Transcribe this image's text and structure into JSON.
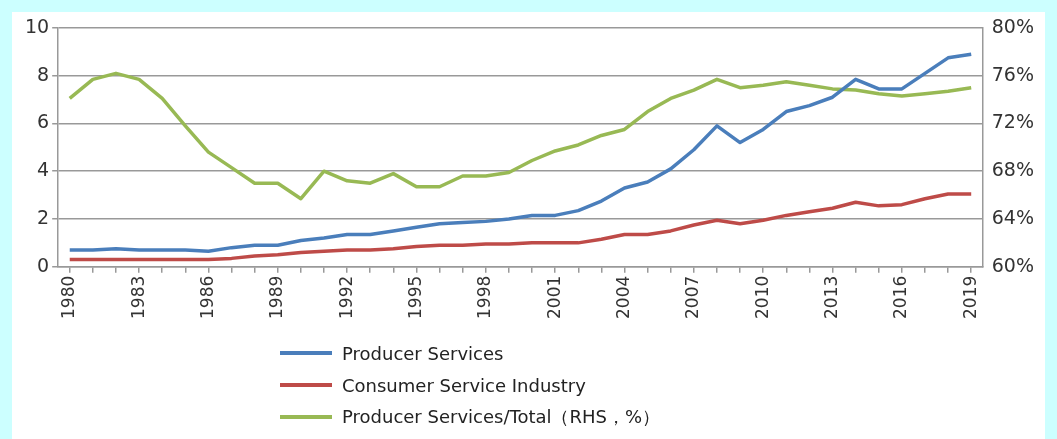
{
  "chart_data": {
    "type": "line",
    "categories": [
      "1980",
      null,
      null,
      "1983",
      null,
      null,
      "1986",
      null,
      null,
      "1989",
      null,
      null,
      "1992",
      null,
      null,
      "1995",
      null,
      null,
      "1998",
      null,
      null,
      "2001",
      null,
      null,
      "2004",
      null,
      null,
      "2007",
      null,
      null,
      "2010",
      null,
      null,
      "2013",
      null,
      null,
      "2016",
      null,
      null,
      "2019"
    ],
    "series": [
      {
        "name": "Producer Services",
        "color": "#4a7ebb",
        "values": [
          0.7,
          0.7,
          0.75,
          0.7,
          0.7,
          0.7,
          0.65,
          0.8,
          0.9,
          0.9,
          1.1,
          1.2,
          1.35,
          1.35,
          1.5,
          1.65,
          1.8,
          1.85,
          1.9,
          2.0,
          2.15,
          2.15,
          2.35,
          2.75,
          3.3,
          3.55,
          4.1,
          4.9,
          5.9,
          5.2,
          5.75,
          6.5,
          6.75,
          7.1,
          7.85,
          7.45,
          7.45,
          8.1,
          8.75,
          8.9
        ]
      },
      {
        "name": "Consumer Service Industry",
        "color": "#be4b48",
        "values": [
          0.3,
          0.3,
          0.3,
          0.3,
          0.3,
          0.3,
          0.3,
          0.35,
          0.45,
          0.5,
          0.6,
          0.65,
          0.7,
          0.7,
          0.75,
          0.85,
          0.9,
          0.9,
          0.95,
          0.95,
          1.0,
          1.0,
          1.0,
          1.15,
          1.35,
          1.35,
          1.5,
          1.75,
          1.95,
          1.8,
          1.95,
          2.15,
          2.3,
          2.45,
          2.7,
          2.55,
          2.6,
          2.85,
          3.05,
          3.05
        ]
      },
      {
        "name": "Producer Services/Total（RHS，%）",
        "color": "#98b954",
        "axis": "y2",
        "values": [
          74.1,
          75.7,
          76.2,
          75.7,
          74.1,
          71.8,
          69.6,
          68.3,
          67.0,
          67.0,
          65.7,
          68.0,
          67.2,
          67.0,
          67.8,
          66.7,
          66.7,
          67.6,
          67.6,
          67.9,
          68.9,
          69.7,
          70.2,
          71.0,
          71.5,
          73.0,
          74.1,
          74.8,
          75.7,
          75.0,
          75.2,
          75.5,
          75.2,
          74.9,
          74.8,
          74.5,
          74.3,
          74.5,
          74.7,
          75.0
        ]
      }
    ],
    "ylim": [
      0,
      10
    ],
    "yticks": [
      0,
      2,
      4,
      6,
      8,
      10
    ],
    "y2lim": [
      60,
      80
    ],
    "y2ticks": [
      {
        "value": 60,
        "label": "60%"
      },
      {
        "value": 64,
        "label": "64%"
      },
      {
        "value": 68,
        "label": "68%"
      },
      {
        "value": 72,
        "label": "72%"
      },
      {
        "value": 76,
        "label": "76%"
      },
      {
        "value": 80,
        "label": "80%"
      }
    ],
    "grid": "y",
    "legend": "bottom",
    "marker": "none",
    "line_style": "solid"
  }
}
